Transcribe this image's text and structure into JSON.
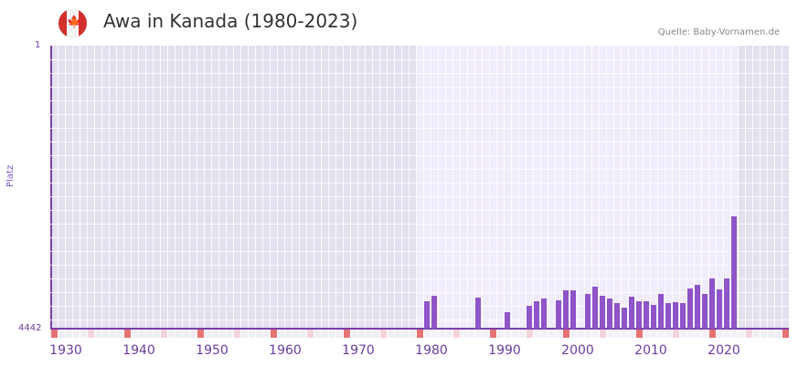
{
  "header": {
    "title": "Awa in Kanada (1980-2023)",
    "source": "Quelle: Baby-Vornamen.de",
    "flag_icon": "canada-flag-icon"
  },
  "axis": {
    "y_top_label": "1",
    "y_bottom_label": "4442",
    "y_title": "Platz"
  },
  "colors": {
    "bar": "#8e54c8",
    "axis": "#7b3fa8",
    "highlight_bg": "#f1ecfa",
    "outside_bg": "#e4e0ee",
    "marker_decade": "#e57373",
    "marker_half": "#f3d3dc"
  },
  "chart_data": {
    "type": "bar",
    "title": "Awa in Kanada (1980-2023)",
    "xlabel": "",
    "ylabel": "Platz",
    "ylim": [
      4442,
      1
    ],
    "y_inverted": true,
    "x_range": [
      1930,
      2030
    ],
    "highlight_range": [
      1980,
      2023
    ],
    "x_ticks": [
      "1930",
      "1940",
      "1950",
      "1960",
      "1970",
      "1980",
      "1990",
      "2000",
      "2010",
      "2020"
    ],
    "grid": true,
    "categories": [
      1981,
      1982,
      1988,
      1992,
      1995,
      1996,
      1997,
      1999,
      2000,
      2001,
      2003,
      2004,
      2005,
      2006,
      2007,
      2008,
      2009,
      2010,
      2011,
      2012,
      2013,
      2014,
      2015,
      2016,
      2017,
      2018,
      2019,
      2020,
      2021,
      2022,
      2023
    ],
    "values": [
      4012,
      3926,
      3955,
      4184,
      4084,
      4012,
      3969,
      3998,
      3840,
      3840,
      3897,
      3783,
      3926,
      3969,
      4041,
      4113,
      3940,
      4012,
      4012,
      4069,
      3897,
      4041,
      4026,
      4041,
      3811,
      3754,
      3897,
      3654,
      3826,
      3654,
      2680
    ]
  }
}
